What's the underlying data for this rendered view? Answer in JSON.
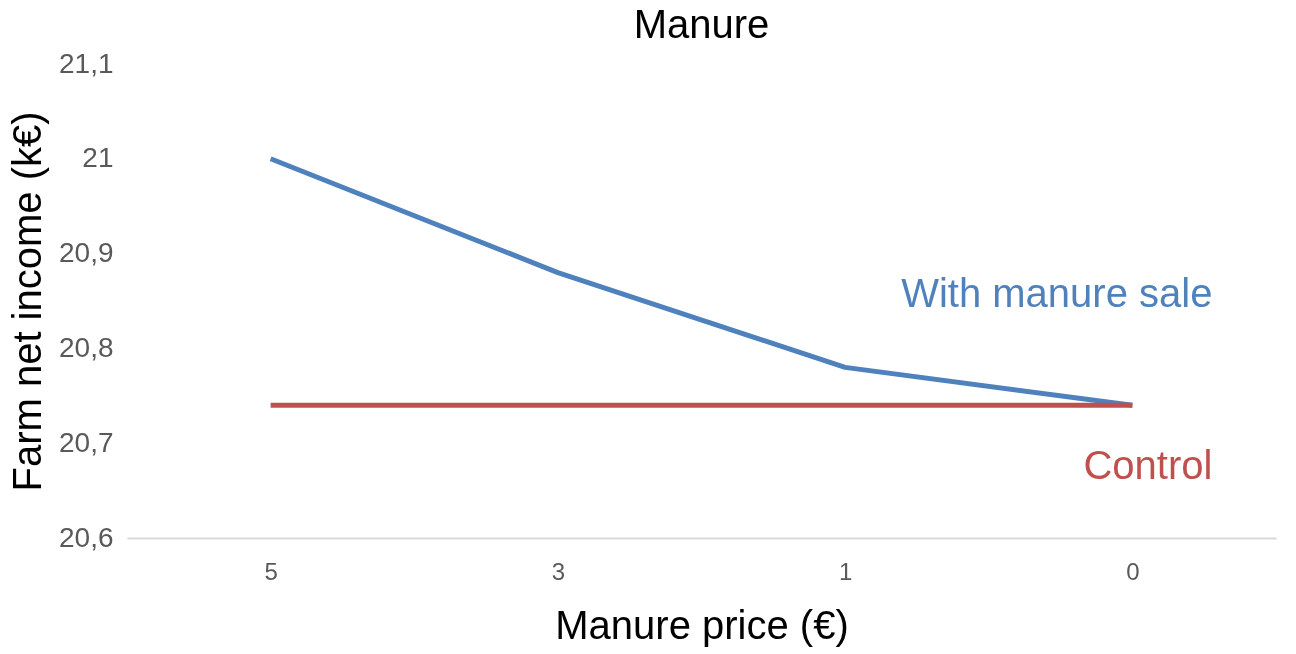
{
  "chart_data": {
    "type": "line",
    "title": "Manure",
    "xlabel": "Manure price (€)",
    "ylabel": "Farm net income (k€)",
    "categories": [
      "5",
      "3",
      "1",
      "0"
    ],
    "series": [
      {
        "name": "With manure sale",
        "color": "#4f81bd",
        "values": [
          21.0,
          20.88,
          20.78,
          20.74
        ]
      },
      {
        "name": "Control",
        "color": "#c0504d",
        "values": [
          20.74,
          20.74,
          20.74,
          20.74
        ]
      }
    ],
    "ylim": [
      20.6,
      21.1
    ],
    "yticks": [
      {
        "value": 20.6,
        "label": "20,6"
      },
      {
        "value": 20.7,
        "label": "20,7"
      },
      {
        "value": 20.8,
        "label": "20,8"
      },
      {
        "value": 20.9,
        "label": "20,9"
      },
      21,
      {
        "value": 21.1,
        "label": "21,1"
      }
    ],
    "grid": false,
    "marker": "none"
  }
}
